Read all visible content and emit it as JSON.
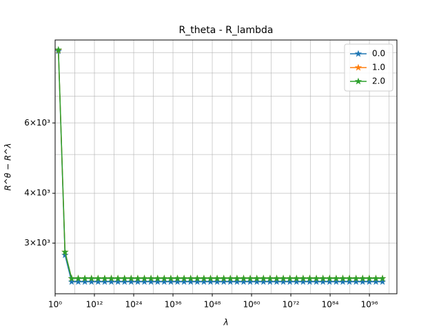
{
  "chart_data": {
    "type": "line",
    "title": "R_theta - R_lambda",
    "x_label": "λ",
    "y_label": "R^θ − R^λ",
    "x_scale": "log",
    "y_scale": "log",
    "grid": true,
    "legend": "upper right",
    "marker": "star",
    "xlim": [
      1,
      2.5e+104
    ],
    "ylim": [
      2240,
      9680
    ],
    "xticks": [
      {
        "value": 1,
        "label": "10⁰"
      },
      {
        "value": 1000000000000.0,
        "label": "10¹²"
      },
      {
        "value": 1e+24,
        "label": "10²⁴"
      },
      {
        "value": 1e+36,
        "label": "10³⁶"
      },
      {
        "value": 1e+48,
        "label": "10⁴⁸"
      },
      {
        "value": 1e+60,
        "label": "10⁶⁰"
      },
      {
        "value": 1e+72,
        "label": "10⁷²"
      },
      {
        "value": 1e+84,
        "label": "10⁸⁴"
      },
      {
        "value": 1e+96,
        "label": "10⁹⁶"
      }
    ],
    "xminor": [
      1000000.0,
      1e+18,
      1e+30,
      1e+42,
      1e+54,
      1e+66,
      1e+78,
      1e+90,
      1e+102
    ],
    "yticks": [
      {
        "value": 3000,
        "label": "3×10³"
      },
      {
        "value": 4000,
        "label": "4×10³"
      },
      {
        "value": 6000,
        "label": "6×10³"
      }
    ],
    "yminor": [
      5000,
      7000,
      8000,
      9000
    ],
    "x": [
      10.0,
      1050.0,
      110000.0,
      11500000.0,
      1210000000.0,
      126000000000.0,
      13300000000000.0,
      1390000000000000.0,
      1.46e+17,
      1.53e+19,
      1.6e+21,
      1.68e+23,
      1.76e+25,
      1.84e+27,
      1.93e+29,
      2.02e+31,
      2.12e+33,
      2.22e+35,
      2.33e+37,
      2.44e+39,
      2.56e+41,
      2.68e+43,
      2.81e+45,
      2.95e+47,
      3.09e+49,
      3.24e+51,
      3.39e+53,
      3.56e+55,
      3.73e+57,
      3.91e+59,
      4.1e+61,
      4.29e+63,
      4.5e+65,
      4.72e+67,
      4.94e+69,
      5.18e+71,
      5.43e+73,
      5.69e+75,
      5.96e+77,
      6.25e+79,
      6.55e+81,
      6.87e+83,
      7.2e+85,
      7.54e+87,
      7.91e+89,
      8.29e+91,
      8.69e+93,
      9.1e+95,
      9.54e+97,
      1e+100
    ],
    "series": [
      {
        "name": "0.0",
        "color": "#1f77b4",
        "values": [
          9080,
          2800,
          2400,
          2400,
          2400,
          2400,
          2400,
          2400,
          2400,
          2400,
          2400,
          2400,
          2400,
          2400,
          2400,
          2400,
          2400,
          2400,
          2400,
          2400,
          2400,
          2400,
          2400,
          2400,
          2400,
          2400,
          2400,
          2400,
          2400,
          2400,
          2400,
          2400,
          2400,
          2400,
          2400,
          2400,
          2400,
          2400,
          2400,
          2400,
          2400,
          2400,
          2400,
          2400,
          2400,
          2400,
          2400,
          2400,
          2400,
          2400
        ]
      },
      {
        "name": "1.0",
        "color": "#ff7f0e",
        "values": [
          9130,
          2850,
          2447,
          2447,
          2447,
          2447,
          2447,
          2447,
          2447,
          2447,
          2447,
          2447,
          2447,
          2447,
          2447,
          2447,
          2447,
          2447,
          2447,
          2447,
          2447,
          2447,
          2447,
          2447,
          2447,
          2447,
          2447,
          2447,
          2447,
          2447,
          2447,
          2447,
          2447,
          2447,
          2447,
          2447,
          2447,
          2447,
          2447,
          2447,
          2447,
          2447,
          2447,
          2447,
          2447,
          2447,
          2447,
          2447,
          2447,
          2447
        ]
      },
      {
        "name": "2.0",
        "color": "#2ca02c",
        "values": [
          9150,
          2850,
          2447,
          2447,
          2447,
          2447,
          2447,
          2447,
          2447,
          2447,
          2447,
          2447,
          2447,
          2447,
          2447,
          2447,
          2447,
          2447,
          2447,
          2447,
          2447,
          2447,
          2447,
          2447,
          2447,
          2447,
          2447,
          2447,
          2447,
          2447,
          2447,
          2447,
          2447,
          2447,
          2447,
          2447,
          2447,
          2447,
          2447,
          2447,
          2447,
          2447,
          2447,
          2447,
          2447,
          2447,
          2447,
          2447,
          2447,
          2447
        ]
      }
    ]
  }
}
